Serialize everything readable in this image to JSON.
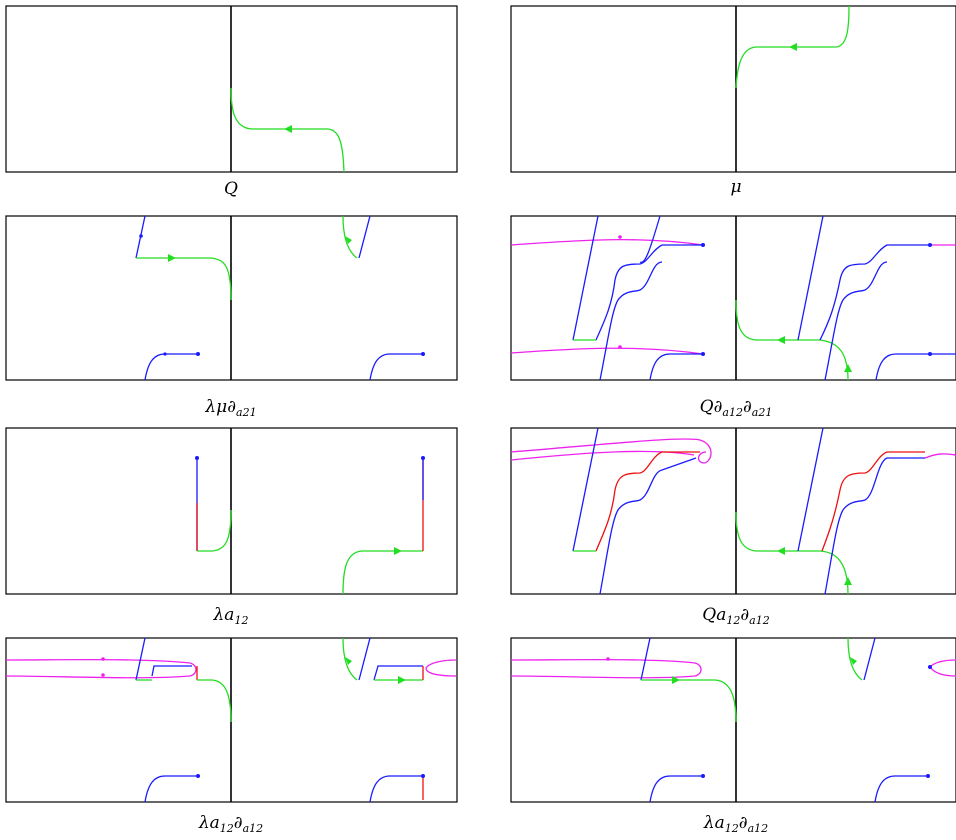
{
  "colors": {
    "blue": "#1a1aff",
    "green": "#22dd22",
    "magenta": "#ee22ee",
    "red": "#ee1111",
    "frame": "#000000"
  },
  "panels": [
    {
      "id": "p1",
      "label_main": "Q",
      "label_sub": ""
    },
    {
      "id": "p2",
      "label_main": "μ",
      "label_sub": ""
    },
    {
      "id": "p3",
      "label_main": "λμ∂",
      "label_sub": "a21"
    },
    {
      "id": "p4",
      "label_main": "Q∂",
      "label_sub": "a12",
      "label_main2": "∂",
      "label_sub2": "a21"
    },
    {
      "id": "p5",
      "label_main": "λa",
      "label_sub": "12"
    },
    {
      "id": "p6",
      "label_main": "Qa",
      "label_sub": "12",
      "label_main2": "∂",
      "label_sub2": "a12"
    },
    {
      "id": "p7",
      "label_main": "λa",
      "label_sub": "12",
      "label_main2": "∂",
      "label_sub2": "a12"
    },
    {
      "id": "p8",
      "label_main": "λa",
      "label_sub": "12",
      "label_main2": "∂",
      "label_sub2": "a12"
    }
  ]
}
